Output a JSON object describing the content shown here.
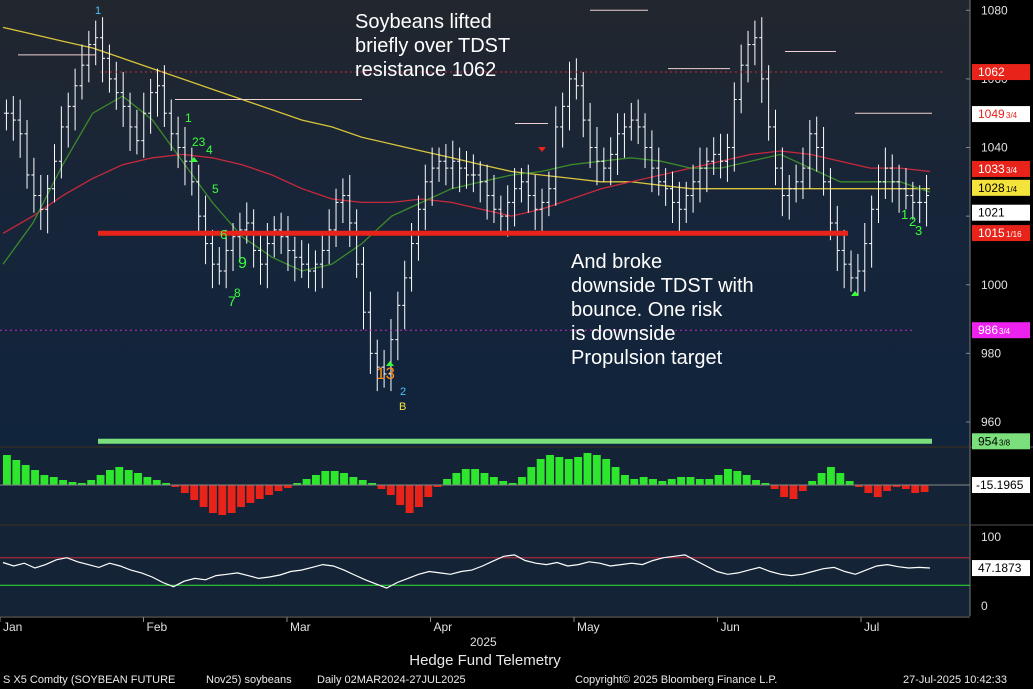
{
  "chart_data": {
    "type": "bar",
    "subtype": "ohlc-price-bars-with-indicators",
    "instrument": "S X5 Comdty (SOYBEAN FUTURE",
    "contract": "Nov25) soybeans",
    "period": "Daily 02MAR2024-27JUL2025",
    "source": "Hedge Fund Telemetry",
    "copyright": "Copyright© 2025 Bloomberg Finance L.P.",
    "timestamp": "27-Jul-2025 10:42:33",
    "x_labels": [
      "Jan",
      "Feb",
      "Mar",
      "Apr",
      "May",
      "Jun",
      "Jul"
    ],
    "year_label": "2025",
    "y_ticks": [
      "1080",
      "1060",
      "1040",
      "1020",
      "1000",
      "980",
      "960"
    ],
    "ylim": [
      953,
      1083
    ],
    "series": [
      {
        "name": "close",
        "values": [
          1050,
          1048,
          1044,
          1032,
          1026,
          1022,
          1028,
          1036,
          1046,
          1052,
          1058,
          1064,
          1070,
          1072,
          1066,
          1060,
          1056,
          1052,
          1046,
          1042,
          1050,
          1056,
          1058,
          1050,
          1044,
          1040,
          1036,
          1030,
          1020,
          1012,
          1006,
          1004,
          1010,
          1014,
          1016,
          1018,
          1010,
          1006,
          1012,
          1016,
          1014,
          1010,
          1008,
          1006,
          1004,
          1006,
          1010,
          1016,
          1024,
          1026,
          1018,
          1006,
          992,
          980,
          976,
          974,
          984,
          994,
          1002,
          1012,
          1022,
          1030,
          1034,
          1036,
          1034,
          1036,
          1034,
          1032,
          1032,
          1030,
          1026,
          1022,
          1020,
          1024,
          1028,
          1030,
          1026,
          1022,
          1024,
          1028,
          1046,
          1052,
          1060,
          1058,
          1048,
          1040,
          1036,
          1034,
          1038,
          1044,
          1046,
          1048,
          1046,
          1040,
          1034,
          1030,
          1028,
          1024,
          1022,
          1026,
          1030,
          1034,
          1036,
          1038,
          1036,
          1040,
          1054,
          1064,
          1070,
          1072,
          1060,
          1046,
          1034,
          1026,
          1028,
          1030,
          1034,
          1044,
          1040,
          1030,
          1018,
          1010,
          1006,
          1002,
          1004,
          1012,
          1022,
          1030,
          1034,
          1030,
          1028,
          1026,
          1024,
          1024,
          1026
        ]
      },
      {
        "name": "ma_yellow",
        "values": [
          1075,
          1073,
          1071,
          1069,
          1066,
          1063,
          1060,
          1057,
          1054,
          1051,
          1048,
          1046,
          1043,
          1041,
          1039,
          1037,
          1035,
          1033,
          1032,
          1031,
          1030,
          1030,
          1029,
          1028,
          1028,
          1028,
          1028,
          1028,
          1028,
          1028,
          1028,
          1028
        ]
      },
      {
        "name": "ma_red",
        "values": [
          1015,
          1020,
          1026,
          1031,
          1035,
          1037,
          1038,
          1037,
          1035,
          1032,
          1028,
          1025,
          1024,
          1024,
          1025,
          1024,
          1022,
          1020,
          1022,
          1025,
          1028,
          1030,
          1032,
          1034,
          1036,
          1038,
          1039,
          1038,
          1036,
          1034,
          1034,
          1033
        ]
      },
      {
        "name": "ma_green",
        "values": [
          1006,
          1018,
          1035,
          1050,
          1055,
          1048,
          1036,
          1024,
          1014,
          1008,
          1004,
          1006,
          1012,
          1020,
          1024,
          1028,
          1030,
          1032,
          1033,
          1035,
          1036,
          1037,
          1036,
          1034,
          1034,
          1036,
          1038,
          1034,
          1030,
          1030,
          1030,
          1027
        ]
      },
      {
        "name": "momentum_histogram",
        "values": [
          3,
          2.5,
          2,
          1.5,
          1,
          0.8,
          0.5,
          0.3,
          0.2,
          0.5,
          1,
          1.5,
          1.8,
          1.5,
          1.2,
          0.8,
          0.5,
          0.2,
          -0.2,
          -0.8,
          -1.5,
          -2.2,
          -2.8,
          -3,
          -2.8,
          -2.2,
          -1.8,
          -1.4,
          -1,
          -0.6,
          -0.3,
          0.2,
          0.6,
          1,
          1.4,
          1.4,
          1.2,
          0.8,
          0.5,
          0.2,
          -0.4,
          -1,
          -2,
          -2.8,
          -2.2,
          -1.2,
          -0.2,
          0.6,
          1.2,
          1.6,
          1.6,
          1.2,
          0.8,
          0.4,
          0.2,
          0.8,
          1.8,
          2.6,
          3,
          2.8,
          2.6,
          2.8,
          3.2,
          3,
          2.6,
          1.8,
          1,
          0.6,
          0.8,
          0.6,
          0.4,
          0.6,
          0.8,
          0.8,
          0.6,
          0.6,
          1,
          1.6,
          1.4,
          1,
          0.5,
          0.2,
          -0.4,
          -1.2,
          -1.4,
          -0.6,
          0.4,
          1.2,
          1.8,
          1.2,
          0.4,
          -0.2,
          -0.8,
          -1.2,
          -0.6,
          -0.2,
          -0.4,
          -0.8,
          -0.7
        ]
      },
      {
        "name": "rsi",
        "values": [
          63,
          58,
          62,
          55,
          60,
          67,
          70,
          64,
          60,
          56,
          62,
          58,
          52,
          48,
          42,
          34,
          28,
          36,
          40,
          38,
          44,
          46,
          48,
          44,
          40,
          42,
          45,
          50,
          52,
          56,
          60,
          58,
          52,
          45,
          38,
          32,
          26,
          34,
          40,
          46,
          50,
          48,
          46,
          50,
          52,
          58,
          65,
          72,
          74,
          66,
          62,
          60,
          63,
          58,
          60,
          64,
          62,
          58,
          60,
          62,
          60,
          66,
          70,
          72,
          74,
          66,
          58,
          50,
          46,
          48,
          52,
          56,
          50,
          46,
          44,
          46,
          50,
          54,
          56,
          50,
          46,
          52,
          58,
          60,
          57,
          55,
          56,
          55
        ]
      }
    ],
    "momentum_value_label": "-15.1965",
    "rsi_value_label": "47.1873",
    "rsi_ticks": [
      "100",
      "0"
    ],
    "price_markers": [
      {
        "label": "1062",
        "color": "#e8231a",
        "text_color": "#ffffff"
      },
      {
        "label": "1049",
        "frac": "3/4",
        "color": "#ffffff",
        "text_color": "#e8231a"
      },
      {
        "label": "1033",
        "frac": "3/4",
        "color": "#e8231a",
        "text_color": "#ffffff"
      },
      {
        "label": "1028",
        "frac": "1/4",
        "color": "#f4e33a",
        "text_color": "#000000"
      },
      {
        "label": "1021",
        "color": "#ffffff",
        "text_color": "#000000"
      },
      {
        "label": "1015",
        "frac": "1/16",
        "color": "#e8231a",
        "text_color": "#ffffff"
      },
      {
        "label": "986",
        "frac": "3/4",
        "color": "#ee22ee",
        "text_color": "#ffffff"
      },
      {
        "label": "954",
        "frac": "3/8",
        "color": "#7be07b",
        "text_color": "#000000"
      }
    ],
    "levels": {
      "tdst_resistance": 1062,
      "tdst_support": 1015,
      "propulsion_target": 954.375,
      "magenta_level": 986.75
    },
    "annotations": [
      {
        "lines": [
          "Soybeans lifted",
          "briefly over TDST",
          "resistance 1062"
        ]
      },
      {
        "lines": [
          "And broke",
          "downside TDST with",
          "bounce.  One risk",
          "is downside",
          "Propulsion target"
        ]
      }
    ],
    "td_counts": [
      {
        "text": "1",
        "color": "#4fc3f7"
      },
      {
        "text": "1",
        "color": "#39ff39"
      },
      {
        "text": "23",
        "color": "#39ff39"
      },
      {
        "text": "4",
        "color": "#39ff39"
      },
      {
        "text": "5",
        "color": "#39ff39"
      },
      {
        "text": "6",
        "color": "#39ff39"
      },
      {
        "text": "9",
        "color": "#39ff39"
      },
      {
        "text": "7",
        "color": "#39ff39"
      },
      {
        "text": "8",
        "color": "#39ff39"
      },
      {
        "text": "13",
        "color": "#ff8c1a"
      },
      {
        "text": "2",
        "color": "#4fc3f7"
      },
      {
        "text": "B",
        "color": "#f4e33a"
      },
      {
        "text": "1",
        "color": "#39ff39"
      },
      {
        "text": "2",
        "color": "#39ff39"
      },
      {
        "text": "3",
        "color": "#39ff39"
      }
    ],
    "colors": {
      "panel_bg": "#142436",
      "price_bars": "#ffffff",
      "tdst_line": "#e8231a",
      "propulsion_line": "#7be07b",
      "up_hist": "#2ee62e",
      "down_hist": "#e8231a",
      "ma_yellow": "#d8c43a",
      "ma_red": "#c8283c",
      "ma_green": "#3c8a2a"
    }
  }
}
